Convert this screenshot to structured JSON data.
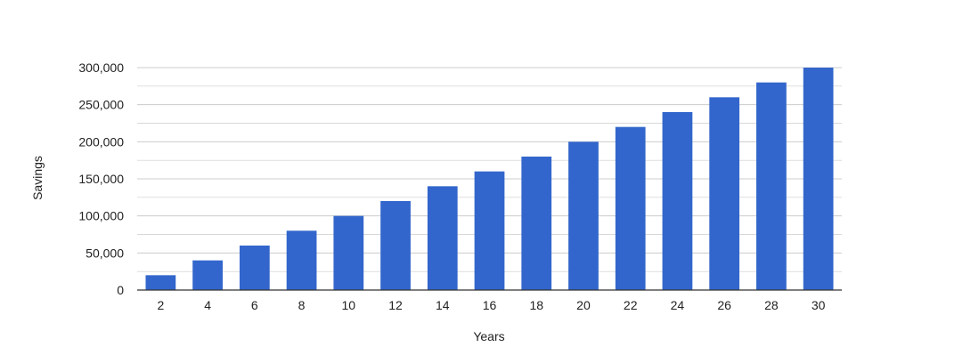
{
  "chart_data": {
    "type": "bar",
    "title": "",
    "xlabel": "Years",
    "ylabel": "Savings",
    "categories": [
      "2",
      "4",
      "6",
      "8",
      "10",
      "12",
      "14",
      "16",
      "18",
      "20",
      "22",
      "24",
      "26",
      "28",
      "30"
    ],
    "values": [
      20000,
      40000,
      60000,
      80000,
      100000,
      120000,
      140000,
      160000,
      180000,
      200000,
      220000,
      240000,
      260000,
      280000,
      300000
    ],
    "ylim": [
      0,
      300000
    ],
    "yticks": [
      "0",
      "50,000",
      "100,000",
      "150,000",
      "200,000",
      "250,000",
      "300,000"
    ],
    "grid": true,
    "legend": "none",
    "bar_color": "#3366cc",
    "grid_color": "#cccccc",
    "axis_color": "#333333"
  }
}
